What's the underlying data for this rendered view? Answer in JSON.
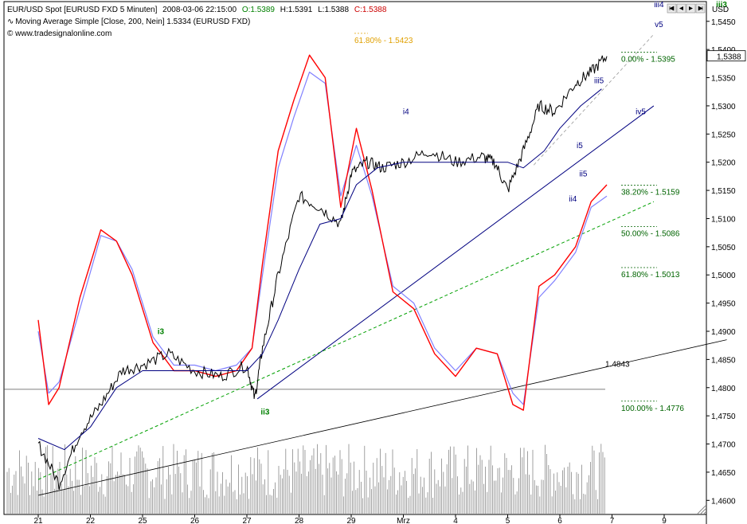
{
  "header": {
    "line1": {
      "symbol": "EUR/USD Spot [EURUSD FXD  5 Minuten]",
      "datetime": "2008-03-06 22:15:00",
      "open": "O:1.5389",
      "high": "H:1.5391",
      "low": "L:1.5388",
      "close": "C:1.5388"
    },
    "line2": "Moving Average Simple [Close, 200, Nein] 1.5334 (EURUSD FXD)",
    "line3": "© www.tradesignalonline.com",
    "axis_unit": "USD"
  },
  "colors": {
    "candles": "#000000",
    "ma": "#000080",
    "osc_red": "#ff0000",
    "osc_blue": "#8080ff",
    "fib_green": "#006400",
    "fib_orange": "#e0a000",
    "volume": "#888888",
    "wave_green": "#008000",
    "wave_navy": "#000080"
  },
  "chart_data": {
    "type": "line",
    "title": "EUR/USD Spot [EURUSD FXD  5 Minuten]",
    "x_tick_labels": [
      "21",
      "22",
      "25",
      "26",
      "27",
      "28",
      "29",
      "Mrz",
      "4",
      "5",
      "6",
      "7",
      "9"
    ],
    "ylim": [
      1.4575,
      1.5485
    ],
    "y_tick_labels": [
      "1,4600",
      "1,4650",
      "1,4700",
      "1,4750",
      "1,4800",
      "1,4850",
      "1,4900",
      "1,4950",
      "1,5000",
      "1,5050",
      "1,5100",
      "1,5150",
      "1,5200",
      "1,5250",
      "1,5300",
      "1,5350",
      "1,5400",
      "1,5450"
    ],
    "y_ticks": [
      1.46,
      1.465,
      1.47,
      1.475,
      1.48,
      1.485,
      1.49,
      1.495,
      1.5,
      1.505,
      1.51,
      1.515,
      1.52,
      1.525,
      1.53,
      1.535,
      1.54,
      1.545
    ],
    "last_price_label": "1,5388",
    "last_price": 1.5388,
    "price_series": {
      "name": "EUR/USD",
      "x": [
        0,
        0.4,
        0.8,
        1.2,
        1.6,
        2.0,
        2.5,
        3.0,
        3.5,
        4.0,
        4.15,
        4.3,
        4.6,
        5.0,
        5.4,
        5.8,
        6.0,
        6.3,
        6.6,
        7.0,
        7.5,
        8.0,
        8.5,
        8.75,
        9.0,
        9.3,
        9.6,
        9.9,
        10.3,
        10.6,
        10.9
      ],
      "values": [
        1.47,
        1.463,
        1.472,
        1.477,
        1.483,
        1.484,
        1.486,
        1.483,
        1.482,
        1.484,
        1.478,
        1.487,
        1.5,
        1.514,
        1.512,
        1.509,
        1.518,
        1.52,
        1.519,
        1.52,
        1.522,
        1.52,
        1.521,
        1.52,
        1.515,
        1.522,
        1.53,
        1.529,
        1.534,
        1.536,
        1.5388
      ]
    },
    "ma_series": {
      "name": "Moving Average Simple [Close, 200, Nein]",
      "x": [
        0,
        0.5,
        1.0,
        1.5,
        2.0,
        2.5,
        3.0,
        3.5,
        4.0,
        4.3,
        4.6,
        5.0,
        5.4,
        5.8,
        6.1,
        6.5,
        7.0,
        7.5,
        8.0,
        8.5,
        9.0,
        9.3,
        9.7,
        10.0,
        10.4,
        10.8
      ],
      "values": [
        1.471,
        1.469,
        1.473,
        1.48,
        1.483,
        1.483,
        1.483,
        1.483,
        1.483,
        1.486,
        1.492,
        1.501,
        1.509,
        1.51,
        1.516,
        1.519,
        1.52,
        1.52,
        1.52,
        1.52,
        1.52,
        1.519,
        1.522,
        1.526,
        1.53,
        1.533
      ]
    },
    "oscillator_red": {
      "x": [
        0,
        0.2,
        0.4,
        0.8,
        1.2,
        1.5,
        1.8,
        2.2,
        2.6,
        3.0,
        3.4,
        3.8,
        4.1,
        4.3,
        4.6,
        4.9,
        5.2,
        5.5,
        5.8,
        6.1,
        6.4,
        6.8,
        7.2,
        7.6,
        8.0,
        8.4,
        8.8,
        9.1,
        9.3,
        9.6,
        9.9,
        10.3,
        10.6,
        10.9
      ],
      "values": [
        1.492,
        1.477,
        1.48,
        1.496,
        1.508,
        1.506,
        1.5,
        1.488,
        1.483,
        1.483,
        1.482,
        1.483,
        1.487,
        1.502,
        1.522,
        1.531,
        1.539,
        1.535,
        1.512,
        1.526,
        1.515,
        1.497,
        1.494,
        1.486,
        1.482,
        1.487,
        1.486,
        1.477,
        1.476,
        1.498,
        1.5,
        1.505,
        1.513,
        1.516
      ]
    },
    "oscillator_blue": {
      "x": [
        0,
        0.2,
        0.4,
        0.8,
        1.2,
        1.5,
        1.8,
        2.2,
        2.6,
        3.0,
        3.4,
        3.8,
        4.1,
        4.3,
        4.6,
        4.9,
        5.2,
        5.5,
        5.8,
        6.1,
        6.4,
        6.8,
        7.2,
        7.6,
        8.0,
        8.4,
        8.8,
        9.1,
        9.3,
        9.6,
        9.9,
        10.3,
        10.6,
        10.9
      ],
      "values": [
        1.49,
        1.479,
        1.481,
        1.494,
        1.507,
        1.506,
        1.501,
        1.489,
        1.484,
        1.484,
        1.483,
        1.484,
        1.487,
        1.5,
        1.519,
        1.528,
        1.536,
        1.534,
        1.514,
        1.523,
        1.514,
        1.498,
        1.495,
        1.487,
        1.483,
        1.487,
        1.486,
        1.479,
        1.477,
        1.496,
        1.499,
        1.504,
        1.512,
        1.514
      ]
    },
    "volume": {
      "note": "relative volume bars along bottom"
    },
    "horizontal_line": {
      "value": 1.4797
    },
    "trendlines": [
      {
        "name": "navy-trendline",
        "from": [
          4.2,
          1.478
        ],
        "to": [
          11.8,
          1.53
        ]
      },
      {
        "name": "green-dashed-trendline",
        "from": [
          0,
          1.4637
        ],
        "to": [
          11.8,
          1.513
        ]
      },
      {
        "name": "black-trendline",
        "from": [
          0,
          1.4609
        ],
        "to": [
          13.2,
          1.4885
        ]
      },
      {
        "name": "grey-dashed-trendline",
        "from": [
          9.5,
          1.5195
        ],
        "to": [
          11.8,
          1.5427
        ]
      }
    ],
    "fib_levels": [
      {
        "label": "0.00% - 1.5395",
        "value": 1.5395
      },
      {
        "label": "38.20% - 1.5159",
        "value": 1.5159
      },
      {
        "label": "50.00% - 1.5086",
        "value": 1.5086
      },
      {
        "label": "61.80% - 1.5013",
        "value": 1.5013
      },
      {
        "label": "100.00% - 1.4776",
        "value": 1.4776
      }
    ],
    "fib_extension": {
      "label": "61.80% - 1.5423",
      "value": 1.5423
    },
    "level_label": {
      "label": "1.4843",
      "value": 1.4843
    },
    "wave_labels": [
      {
        "label": "i3",
        "x": 2.35,
        "value": 1.4895,
        "color": "green"
      },
      {
        "label": "ii3",
        "x": 4.35,
        "value": 1.4752,
        "color": "green"
      },
      {
        "label": "i4",
        "x": 7.05,
        "value": 1.5285,
        "color": "navy"
      },
      {
        "label": "ii4",
        "x": 10.25,
        "value": 1.513,
        "color": "navy"
      },
      {
        "label": "i5",
        "x": 10.38,
        "value": 1.5225,
        "color": "navy"
      },
      {
        "label": "ii5",
        "x": 10.45,
        "value": 1.5175,
        "color": "navy"
      },
      {
        "label": "iii5",
        "x": 10.75,
        "value": 1.534,
        "color": "navy"
      },
      {
        "label": "iv5",
        "x": 11.55,
        "value": 1.5285,
        "color": "navy"
      },
      {
        "label": "iii4",
        "x": 11.9,
        "value": 1.5475,
        "color": "navy"
      },
      {
        "label": "v5",
        "x": 11.9,
        "value": 1.544,
        "color": "navy"
      },
      {
        "label": "iii3",
        "x": 13.1,
        "value": 1.5475,
        "color": "green"
      }
    ]
  }
}
